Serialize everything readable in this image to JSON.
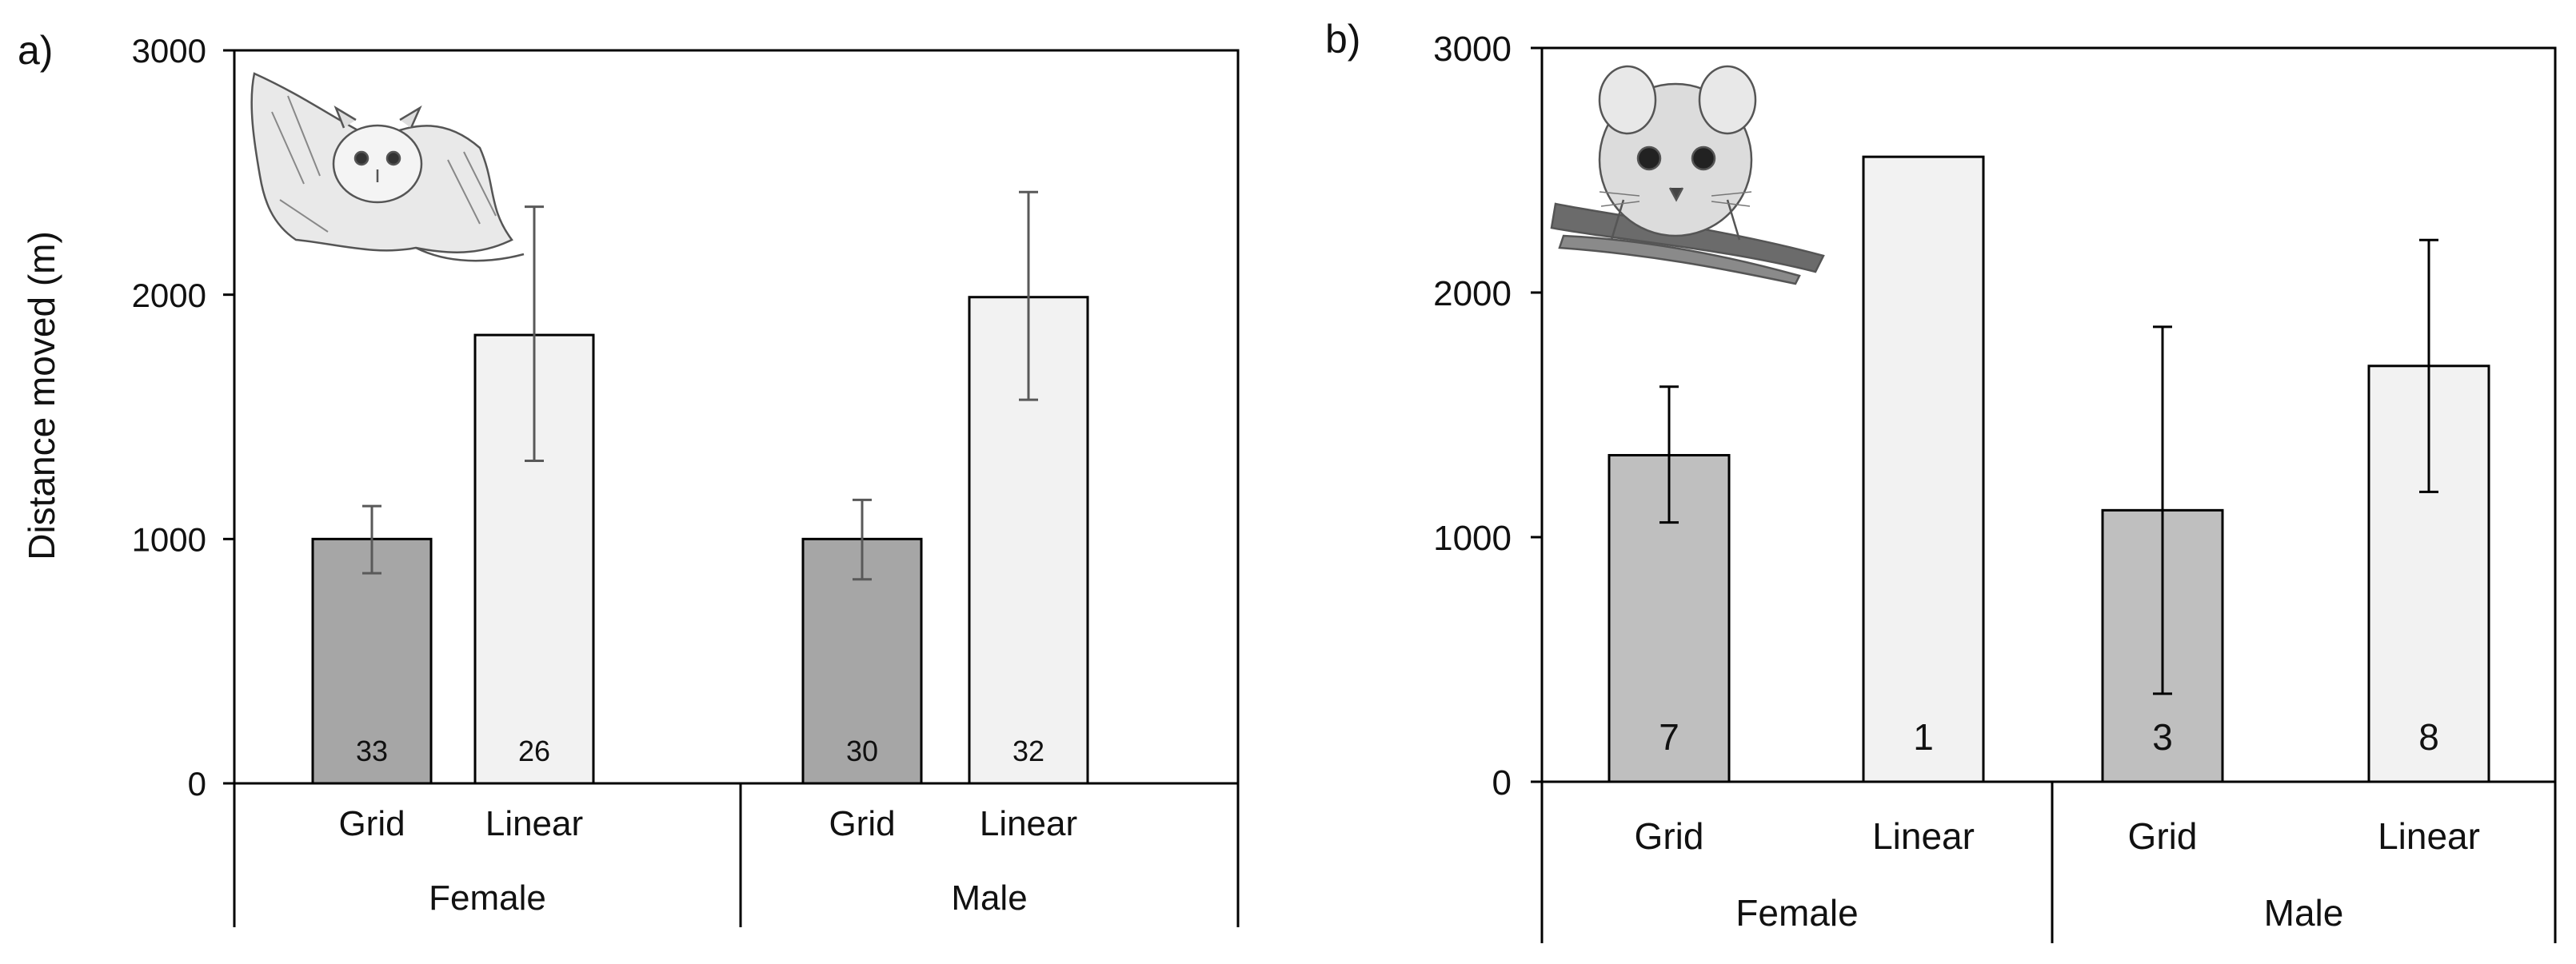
{
  "chart_data": [
    {
      "panel_label": "a)",
      "type": "bar",
      "ylabel": "Distance moved (m)",
      "ylim": [
        0,
        3000
      ],
      "yticks": [
        0,
        1000,
        2000,
        3000
      ],
      "groups": [
        {
          "label": "Female",
          "bars": [
            {
              "category": "Grid",
              "value": 1000,
              "err_low": 860,
              "err_high": 1135,
              "n": "33",
              "shade": "dark"
            },
            {
              "category": "Linear",
              "value": 1835,
              "err_low": 1320,
              "err_high": 2360,
              "n": "26",
              "shade": "light"
            }
          ]
        },
        {
          "label": "Male",
          "bars": [
            {
              "category": "Grid",
              "value": 1000,
              "err_low": 835,
              "err_high": 1160,
              "n": "30",
              "shade": "dark"
            },
            {
              "category": "Linear",
              "value": 1990,
              "err_low": 1570,
              "err_high": 2420,
              "n": "32",
              "shade": "light"
            }
          ]
        }
      ],
      "illustration": "sugar-glider"
    },
    {
      "panel_label": "b)",
      "type": "bar",
      "ylabel": "",
      "ylim": [
        0,
        3000
      ],
      "yticks": [
        0,
        1000,
        2000,
        3000
      ],
      "groups": [
        {
          "label": "Female",
          "bars": [
            {
              "category": "Grid",
              "value": 1335,
              "err_low": 1060,
              "err_high": 1615,
              "n": "7",
              "shade": "mid"
            },
            {
              "category": "Linear",
              "value": 2555,
              "err_low": null,
              "err_high": null,
              "n": "1",
              "shade": "light"
            }
          ]
        },
        {
          "label": "Male",
          "bars": [
            {
              "category": "Grid",
              "value": 1110,
              "err_low": 360,
              "err_high": 1860,
              "n": "3",
              "shade": "mid"
            },
            {
              "category": "Linear",
              "value": 1700,
              "err_low": 1185,
              "err_high": 2215,
              "n": "8",
              "shade": "light"
            }
          ]
        }
      ],
      "illustration": "antechinus"
    }
  ],
  "colors": {
    "dark": "#a6a6a6",
    "mid": "#bfbfbf",
    "light": "#f2f2f2",
    "axis": "#000000",
    "error_a": "#595959",
    "error_b": "#000000"
  }
}
